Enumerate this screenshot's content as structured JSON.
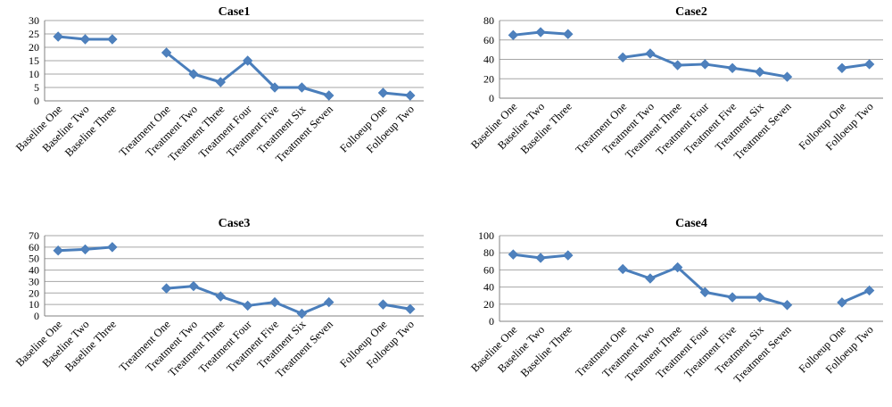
{
  "colors": {
    "series": "#4a7ebb",
    "marker_fill": "#4f81bd",
    "grid": "#a6a6a6"
  },
  "chart_data": [
    {
      "type": "line",
      "title": "Case1",
      "categories": [
        "Baseline One",
        "Baseline Two",
        "Baseline Three",
        "",
        "Treatment One",
        "Treatment Two",
        "Treatment Three",
        "Treatment Four",
        "Treatment Five",
        "Treatment Six",
        "Treatment Seven",
        "",
        "Folloeup One",
        "Folloeup Two"
      ],
      "series": [
        {
          "values": [
            24,
            23,
            23,
            null,
            18,
            10,
            7,
            15,
            5,
            5,
            2,
            null,
            3,
            2
          ]
        }
      ],
      "ylim": [
        0,
        30
      ],
      "yticks": [
        0,
        5,
        10,
        15,
        20,
        25,
        30
      ],
      "grid": true,
      "legend": "none"
    },
    {
      "type": "line",
      "title": "Case2",
      "categories": [
        "Baseline One",
        "Baseline Two",
        "Baseline Three",
        "",
        "Treatment One",
        "Treatment Two",
        "Treatment Three",
        "Treatment Four",
        "Treatment Five",
        "Treatment Six",
        "Treatment Seven",
        "",
        "Folloeup One",
        "Folloeup Two"
      ],
      "series": [
        {
          "values": [
            65,
            68,
            66,
            null,
            42,
            46,
            34,
            35,
            31,
            27,
            22,
            null,
            31,
            35
          ]
        }
      ],
      "ylim": [
        0,
        80
      ],
      "yticks": [
        0,
        20,
        40,
        60,
        80
      ],
      "grid": true,
      "legend": "none"
    },
    {
      "type": "line",
      "title": "Case3",
      "categories": [
        "Baseline One",
        "Baseline Two",
        "Baseline Three",
        "",
        "Treatment One",
        "Treatment Two",
        "Treatment Three",
        "Treatment Four",
        "Treatment Five",
        "Treatment Six",
        "Treatment Seven",
        "",
        "Folloeup One",
        "Folloeup Two"
      ],
      "series": [
        {
          "values": [
            57,
            58,
            60,
            null,
            24,
            26,
            17,
            9,
            12,
            2,
            12,
            null,
            10,
            6
          ]
        }
      ],
      "ylim": [
        0,
        70
      ],
      "yticks": [
        0,
        10,
        20,
        30,
        40,
        50,
        60,
        70
      ],
      "grid": true,
      "legend": "none"
    },
    {
      "type": "line",
      "title": "Case4",
      "categories": [
        "Baseline One",
        "Baseline Two",
        "Baseline Three",
        "",
        "Treatment One",
        "Treatment Two",
        "Treatment Three",
        "Treatment Four",
        "Treatment Five",
        "Treatment Six",
        "Treatment Seven",
        "",
        "Folloeup One",
        "Folloeup Two"
      ],
      "series": [
        {
          "values": [
            78,
            74,
            77,
            null,
            61,
            50,
            63,
            34,
            28,
            28,
            19,
            null,
            22,
            36
          ]
        }
      ],
      "ylim": [
        0,
        100
      ],
      "yticks": [
        0,
        20,
        40,
        60,
        80,
        100
      ],
      "grid": true,
      "legend": "none"
    }
  ]
}
